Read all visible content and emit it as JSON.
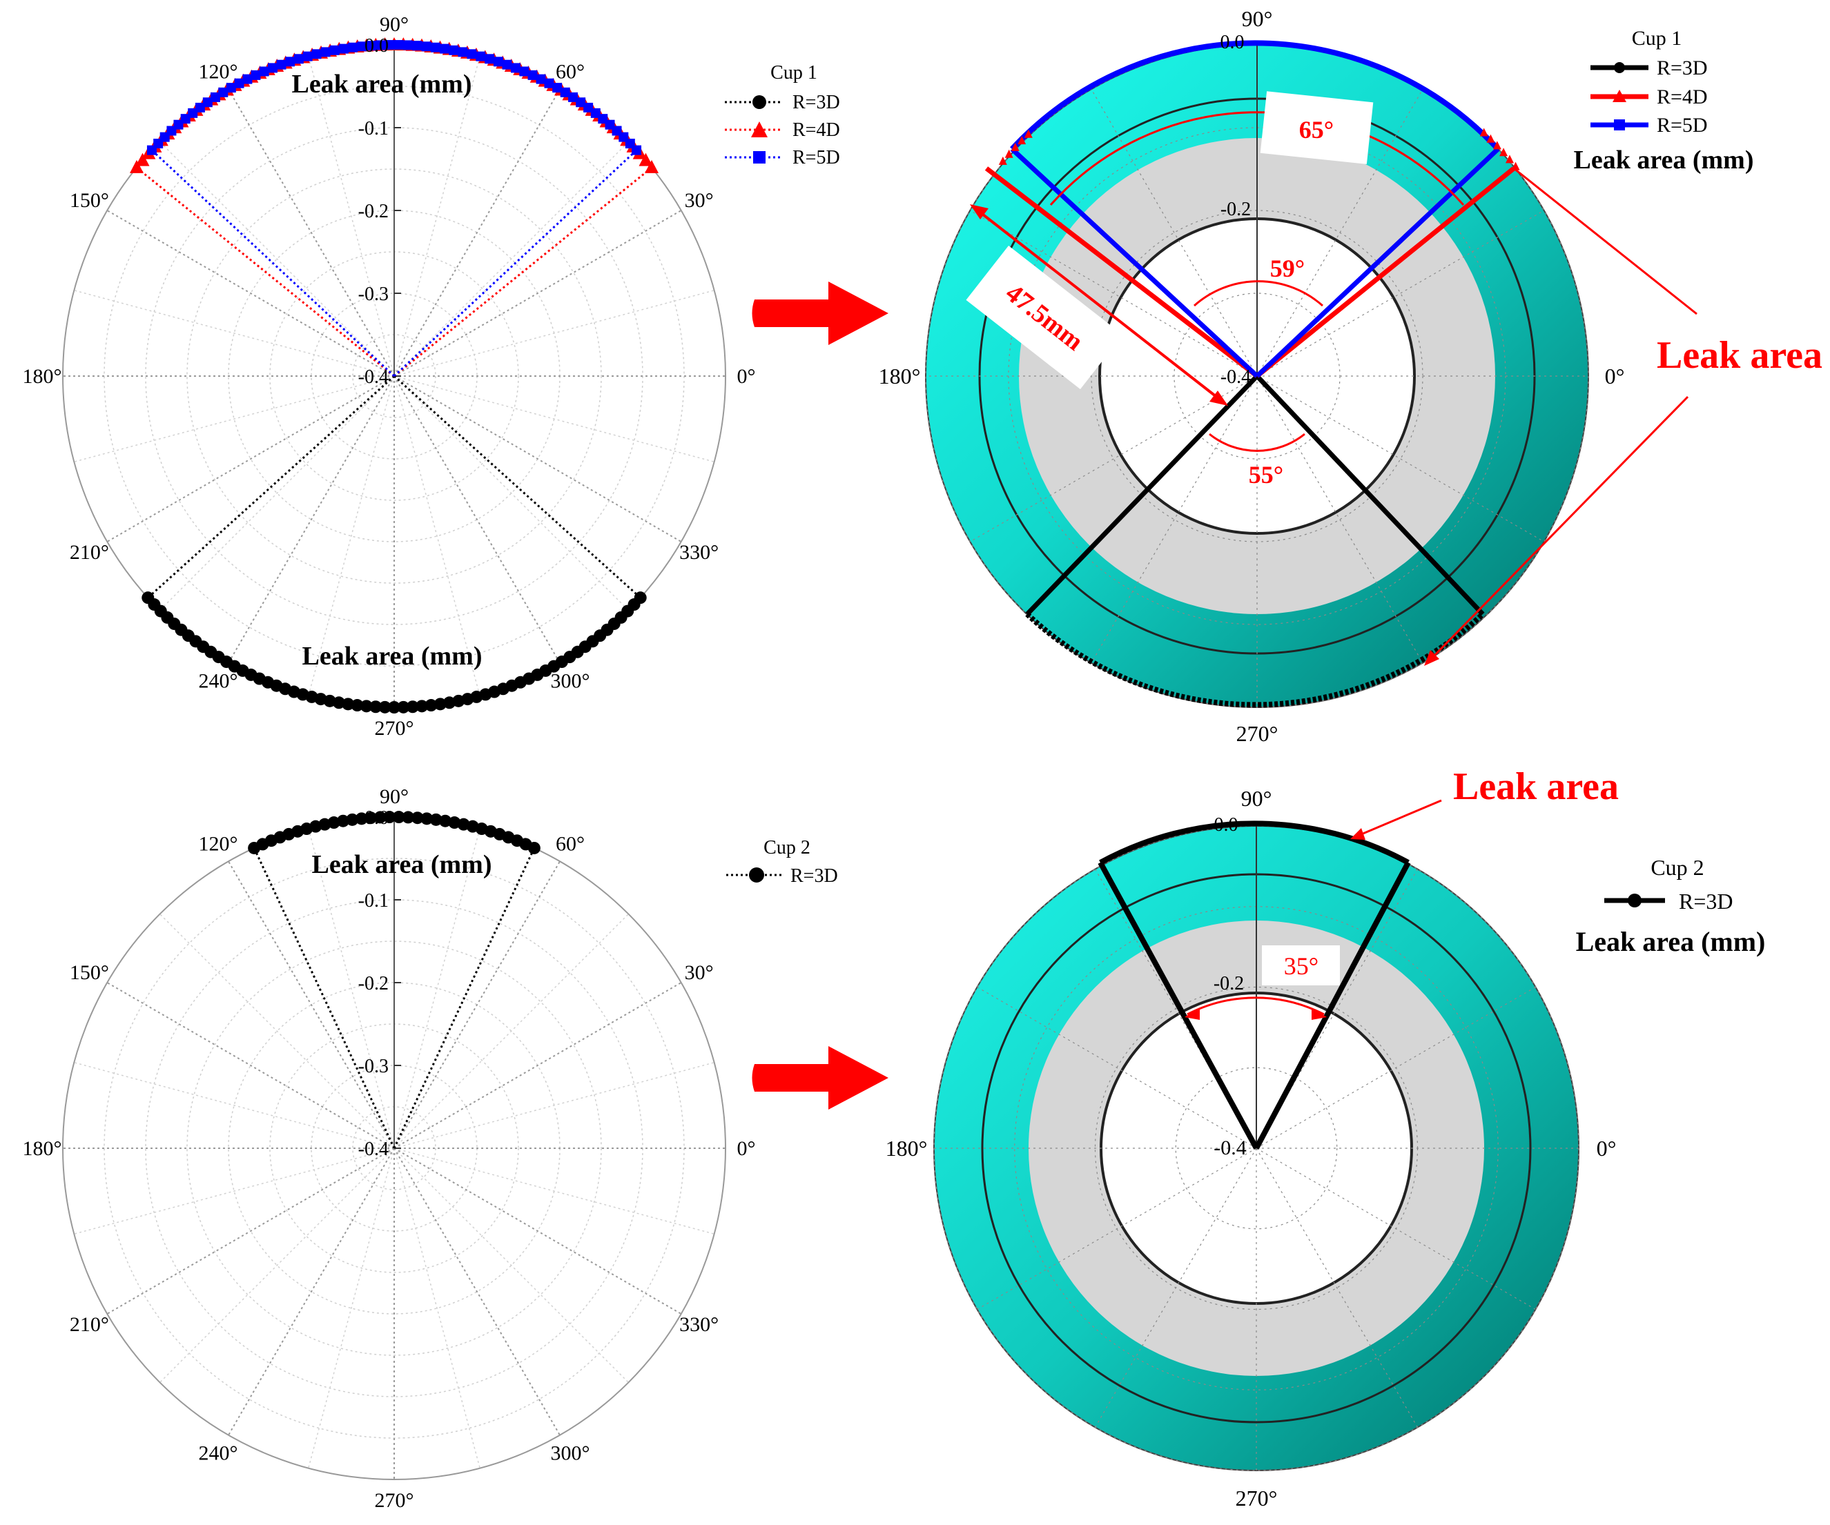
{
  "colors": {
    "black": "#000000",
    "red": "#ff0000",
    "blue": "#0000ff",
    "cyan_light": "#1ff7ea",
    "cyan_dark": "#009f95",
    "gray_ring": "#d6d6d6",
    "grid": "#aaaaaa"
  },
  "arrow_icon": "red-right-arrow-icon",
  "angular_ticks": [
    "0°",
    "30°",
    "60°",
    "90°",
    "120°",
    "150°",
    "180°",
    "210°",
    "240°",
    "270°",
    "300°",
    "330°"
  ],
  "radial_ticks": [
    "0.0",
    "-0.1",
    "-0.2",
    "-0.3",
    "-0.4"
  ],
  "chart_data": [
    {
      "type": "polar",
      "panel": "top-left",
      "radial_axis_label": "Leak area (mm)",
      "rlim": [
        -0.4,
        0.0
      ],
      "angle_ticks_deg": [
        0,
        30,
        60,
        90,
        120,
        150,
        180,
        210,
        240,
        270,
        300,
        330
      ],
      "radial_ticks": [
        0.0,
        -0.1,
        -0.2,
        -0.3,
        -0.4
      ],
      "grid": true,
      "legend": {
        "title": "Cup 1",
        "placement": "top-right"
      },
      "series": [
        {
          "name": "R=3D",
          "color": "#000000",
          "marker": "circle",
          "line": "dotted",
          "angle_range_deg": [
            222,
            318
          ],
          "r": 0.0
        },
        {
          "name": "R=4D",
          "color": "#ff0000",
          "marker": "triangle",
          "line": "dotted",
          "angle_range_deg": [
            39,
            141
          ],
          "r": 0.0
        },
        {
          "name": "R=5D",
          "color": "#0000ff",
          "marker": "square",
          "line": "dotted",
          "angle_range_deg": [
            43,
            137
          ],
          "r": 0.0
        }
      ],
      "annotations": [
        "Leak area (mm)",
        "Leak area (mm)"
      ]
    },
    {
      "type": "polar",
      "panel": "top-right",
      "radial_axis_label": "Leak area (mm)",
      "legend": {
        "title": "Cup 1",
        "placement": "top-right"
      },
      "series": [
        {
          "name": "R=3D",
          "color": "#000000",
          "line": "solid"
        },
        {
          "name": "R=4D",
          "color": "#ff0000",
          "line": "solid"
        },
        {
          "name": "R=5D",
          "color": "#0000ff",
          "line": "solid"
        }
      ],
      "annotations": [
        "65°",
        "59°",
        "55°",
        "47.5mm",
        "Leak area"
      ],
      "radial_ticks_shown": [
        "0.0",
        "-0.2",
        "-0.4"
      ]
    },
    {
      "type": "polar",
      "panel": "bottom-left",
      "radial_axis_label": "Leak area (mm)",
      "rlim": [
        -0.4,
        0.0
      ],
      "angle_ticks_deg": [
        0,
        30,
        60,
        90,
        120,
        150,
        180,
        210,
        240,
        270,
        300,
        330
      ],
      "radial_ticks": [
        0.0,
        -0.1,
        -0.2,
        -0.3,
        -0.4
      ],
      "grid": true,
      "legend": {
        "title": "Cup 2",
        "placement": "top-right"
      },
      "series": [
        {
          "name": "R=3D",
          "color": "#000000",
          "marker": "circle",
          "line": "dotted",
          "angle_range_deg": [
            65,
            115
          ],
          "r": 0.0
        }
      ],
      "annotations": [
        "Leak area (mm)"
      ]
    },
    {
      "type": "polar",
      "panel": "bottom-right",
      "radial_axis_label": "Leak area (mm)",
      "legend": {
        "title": "Cup 2",
        "placement": "top-right"
      },
      "series": [
        {
          "name": "R=3D",
          "color": "#000000",
          "line": "solid"
        }
      ],
      "annotations": [
        "35°",
        "Leak area"
      ],
      "radial_ticks_shown": [
        "0.0",
        "-0.2",
        "-0.4"
      ]
    }
  ],
  "texts": {
    "leak_area_mm": "Leak area (mm)",
    "leak_area": "Leak area",
    "cup1": "Cup 1",
    "cup2": "Cup 2",
    "r3d": "R=3D",
    "r4d": "R=4D",
    "r5d": "R=5D",
    "a65": "65°",
    "a59": "59°",
    "a55": "55°",
    "a35": "35°",
    "len475": "47.5mm"
  }
}
